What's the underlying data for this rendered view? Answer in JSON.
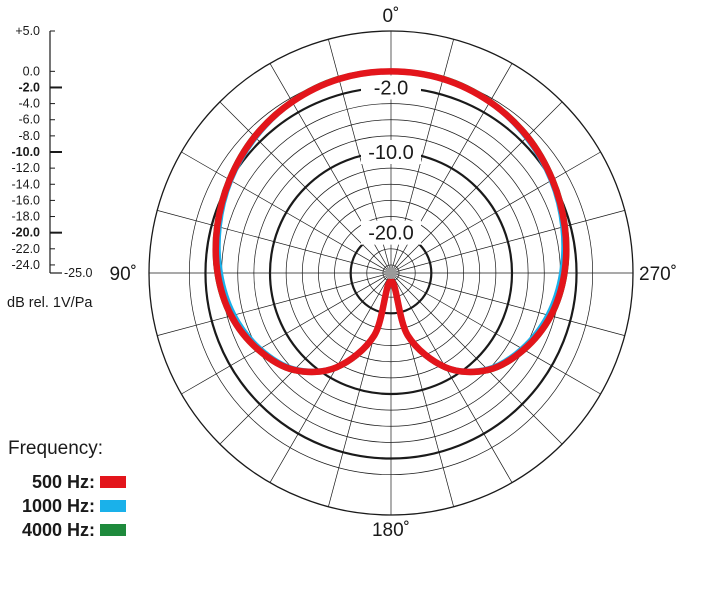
{
  "chart_data": {
    "type": "polar",
    "angle_labels": [
      {
        "angle": 0,
        "text": "0˚"
      },
      {
        "angle": 90,
        "text": "90˚"
      },
      {
        "angle": 180,
        "text": "180˚"
      },
      {
        "angle": 270,
        "text": "270˚"
      }
    ],
    "radial_range": [
      -25,
      5
    ],
    "radial_rings": [
      5,
      0,
      -2,
      -4,
      -6,
      -8,
      -10,
      -12,
      -14,
      -16,
      -18,
      -20,
      -22,
      -24,
      -25
    ],
    "highlighted_rings": [
      -2,
      -10,
      -20
    ],
    "ring_labels": [
      "-2.0",
      "-10.0",
      "-20.0"
    ],
    "spoke_step_degrees": 15,
    "scale_ticks": [
      "+5.0",
      "0.0",
      "-2.0",
      "-4.0",
      "-6.0",
      "-8.0",
      "-10.0",
      "-12.0",
      "-14.0",
      "-16.0",
      "-18.0",
      "-20.0",
      "-22.0",
      "-24.0"
    ],
    "scale_bold": [
      "-2.0",
      "-10.0",
      "-20.0"
    ],
    "scale_end_label": "-25.0",
    "scale_unit": "dB rel. 1V/Pa",
    "series": [
      {
        "name": "500 Hz",
        "color": "#e3151b",
        "points": [
          [
            0,
            0.0
          ],
          [
            15,
            -0.1
          ],
          [
            30,
            -0.5
          ],
          [
            45,
            -1.1
          ],
          [
            60,
            -1.9
          ],
          [
            75,
            -2.7
          ],
          [
            90,
            -3.5
          ],
          [
            105,
            -4.5
          ],
          [
            120,
            -6.0
          ],
          [
            135,
            -8.0
          ],
          [
            150,
            -11.5
          ],
          [
            165,
            -17.0
          ],
          [
            180,
            -24.0
          ],
          [
            195,
            -17.0
          ],
          [
            210,
            -11.5
          ],
          [
            225,
            -8.0
          ],
          [
            240,
            -6.0
          ],
          [
            255,
            -4.5
          ],
          [
            270,
            -3.5
          ],
          [
            285,
            -2.7
          ],
          [
            300,
            -1.9
          ],
          [
            315,
            -1.1
          ],
          [
            330,
            -0.5
          ],
          [
            345,
            -0.1
          ]
        ]
      },
      {
        "name": "1000 Hz",
        "color": "#1ab1ea",
        "points": [
          [
            0,
            0.0
          ],
          [
            15,
            -0.1
          ],
          [
            30,
            -0.5
          ],
          [
            45,
            -1.2
          ],
          [
            60,
            -2.0
          ],
          [
            75,
            -2.9
          ],
          [
            90,
            -3.8
          ],
          [
            105,
            -4.8
          ],
          [
            120,
            -6.2
          ],
          [
            135,
            -8.1
          ],
          [
            150,
            -11.5
          ],
          [
            165,
            -17.0
          ],
          [
            180,
            -24.0
          ],
          [
            195,
            -17.0
          ],
          [
            210,
            -11.5
          ],
          [
            225,
            -8.1
          ],
          [
            240,
            -6.2
          ],
          [
            255,
            -4.8
          ],
          [
            270,
            -3.8
          ],
          [
            285,
            -2.9
          ],
          [
            300,
            -2.0
          ],
          [
            315,
            -1.2
          ],
          [
            330,
            -0.5
          ],
          [
            345,
            -0.1
          ]
        ]
      },
      {
        "name": "4000 Hz",
        "color": "#1e8a3c",
        "points": [
          [
            0,
            0.0
          ],
          [
            15,
            0.0
          ],
          [
            30,
            -0.4
          ],
          [
            45,
            -1.0
          ],
          [
            60,
            -1.8
          ],
          [
            75,
            -2.6
          ],
          [
            90,
            -3.4
          ],
          [
            105,
            -4.4
          ],
          [
            120,
            -5.9
          ],
          [
            135,
            -7.9
          ],
          [
            150,
            -11.4
          ],
          [
            165,
            -16.8
          ],
          [
            180,
            -24.0
          ],
          [
            195,
            -16.8
          ],
          [
            210,
            -11.4
          ],
          [
            225,
            -7.9
          ],
          [
            240,
            -5.9
          ],
          [
            255,
            -4.4
          ],
          [
            270,
            -3.4
          ],
          [
            285,
            -2.6
          ],
          [
            300,
            -1.8
          ],
          [
            315,
            -1.0
          ],
          [
            330,
            -0.4
          ],
          [
            345,
            0.0
          ]
        ]
      }
    ]
  },
  "legend": {
    "title": "Frequency:",
    "items": [
      {
        "label": "500 Hz:",
        "color": "#e3151b"
      },
      {
        "label": "1000 Hz:",
        "color": "#1ab1ea"
      },
      {
        "label": "4000 Hz:",
        "color": "#1e8a3c"
      }
    ]
  }
}
